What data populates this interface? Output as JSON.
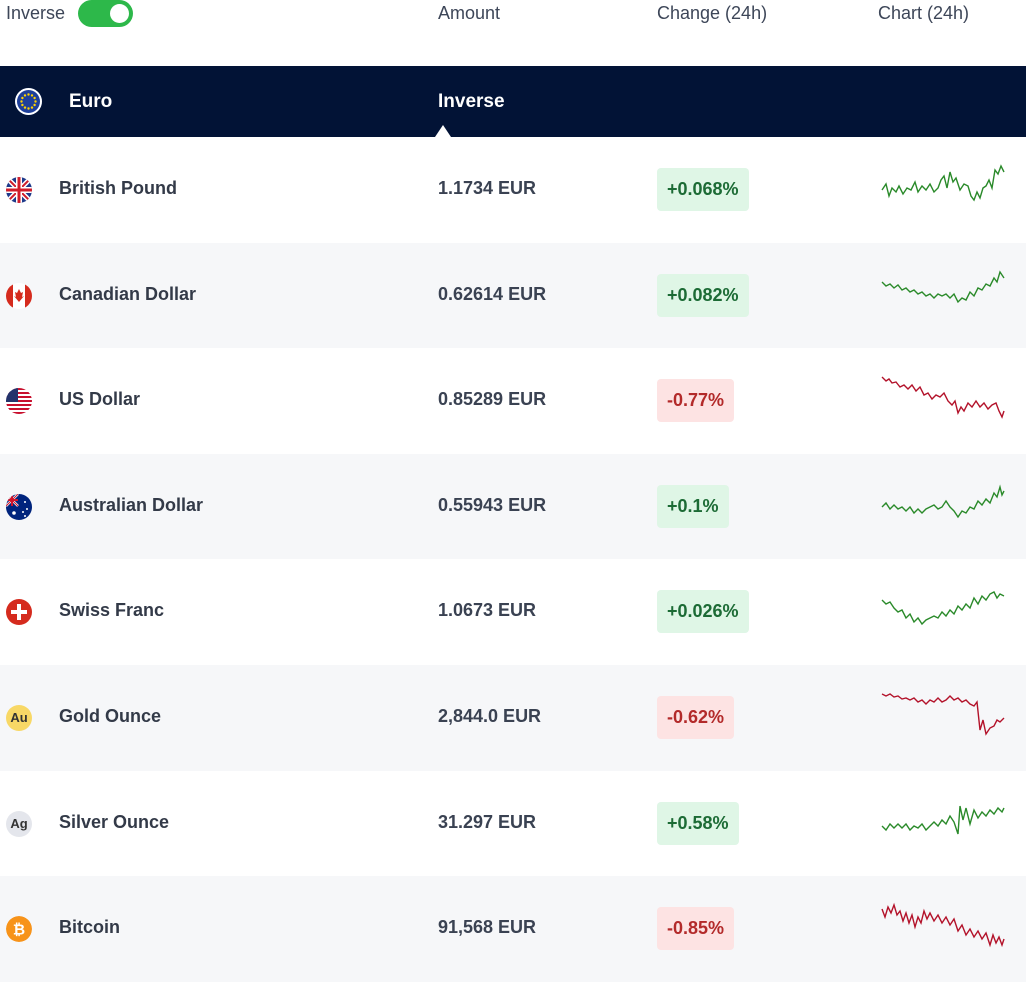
{
  "header": {
    "inverse_label": "Inverse",
    "inverse_on": true,
    "col_amount": "Amount",
    "col_change": "Change (24h)",
    "col_chart": "Chart (24h)"
  },
  "base": {
    "name": "Euro",
    "mode": "Inverse"
  },
  "colors": {
    "up": "#2a8a2a",
    "down": "#b3122a",
    "toggle": "#2db84a",
    "bar": "#021336"
  },
  "rows": [
    {
      "name": "British Pound",
      "amount": "1.1734 EUR",
      "change": "+0.068%",
      "trend": "up",
      "icon": "uk-flag-icon"
    },
    {
      "name": "Canadian Dollar",
      "amount": "0.62614 EUR",
      "change": "+0.082%",
      "trend": "up",
      "icon": "canada-flag-icon"
    },
    {
      "name": "US Dollar",
      "amount": "0.85289 EUR",
      "change": "-0.77%",
      "trend": "down",
      "icon": "us-flag-icon"
    },
    {
      "name": "Australian Dollar",
      "amount": "0.55943 EUR",
      "change": "+0.1%",
      "trend": "up",
      "icon": "australia-flag-icon"
    },
    {
      "name": "Swiss Franc",
      "amount": "1.0673 EUR",
      "change": "+0.026%",
      "trend": "up",
      "icon": "swiss-flag-icon"
    },
    {
      "name": "Gold Ounce",
      "amount": "2,844.0 EUR",
      "change": "-0.62%",
      "trend": "down",
      "icon": "gold-icon",
      "symbol": "Au"
    },
    {
      "name": "Silver Ounce",
      "amount": "31.297 EUR",
      "change": "+0.58%",
      "trend": "up",
      "icon": "silver-icon",
      "symbol": "Ag"
    },
    {
      "name": "Bitcoin",
      "amount": "91,568 EUR",
      "change": "-0.85%",
      "trend": "down",
      "icon": "bitcoin-icon"
    }
  ]
}
